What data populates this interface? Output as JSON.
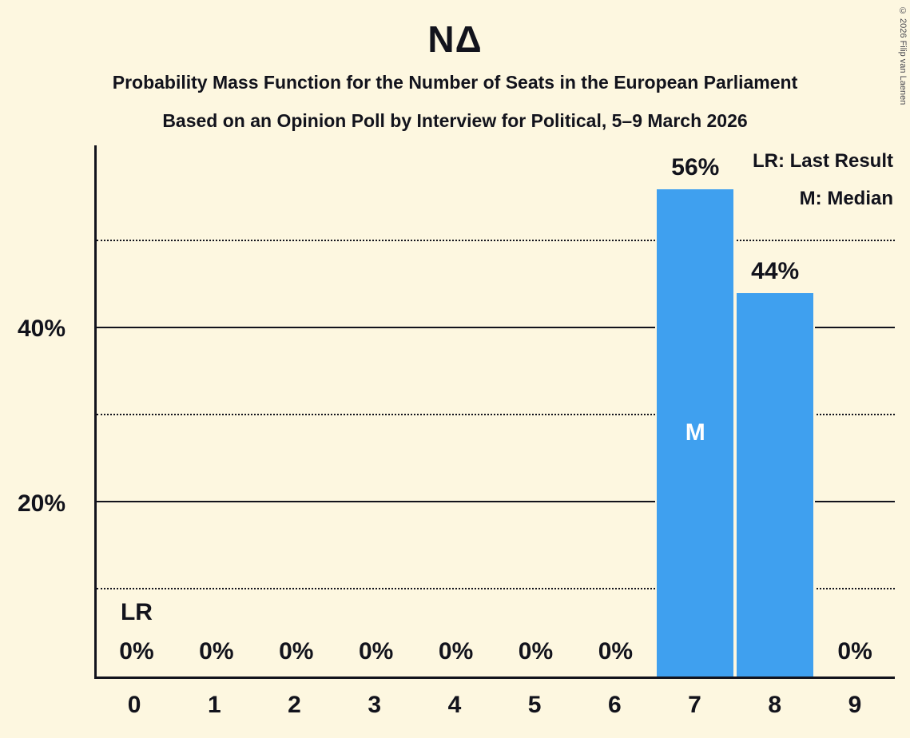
{
  "page": {
    "background": "#fdf7e0",
    "text_color": "#12131c",
    "copyright": "© 2026 Filip van Laenen"
  },
  "header": {
    "title": "ΝΔ",
    "subtitle1": "Probability Mass Function for the Number of Seats in the European Parliament",
    "subtitle2": "Based on an Opinion Poll by Interview for Political, 5–9 March 2026"
  },
  "legend": {
    "lr": "LR: Last Result",
    "m": "M: Median"
  },
  "chart_data": {
    "type": "bar",
    "title": "ΝΔ",
    "xlabel": "",
    "ylabel": "",
    "categories": [
      0,
      1,
      2,
      3,
      4,
      5,
      6,
      7,
      8,
      9
    ],
    "values": [
      0,
      0,
      0,
      0,
      0,
      0,
      0,
      56,
      44,
      0
    ],
    "labels": [
      "0%",
      "0%",
      "0%",
      "0%",
      "0%",
      "0%",
      "0%",
      "56%",
      "44%",
      "0%"
    ],
    "ylim": [
      0,
      61
    ],
    "yticks": [
      {
        "value": 20,
        "label": "20%"
      },
      {
        "value": 40,
        "label": "40%"
      }
    ],
    "gridlines": {
      "solid": [
        20,
        40
      ],
      "dotted": [
        10,
        30,
        50
      ]
    },
    "grid": true,
    "legend_position": "top-right",
    "bar_color": "#3fa0ef",
    "last_result_seats": 0,
    "median_seats": 7,
    "annotations": {
      "lr_label": "LR",
      "median_label": "M"
    }
  }
}
